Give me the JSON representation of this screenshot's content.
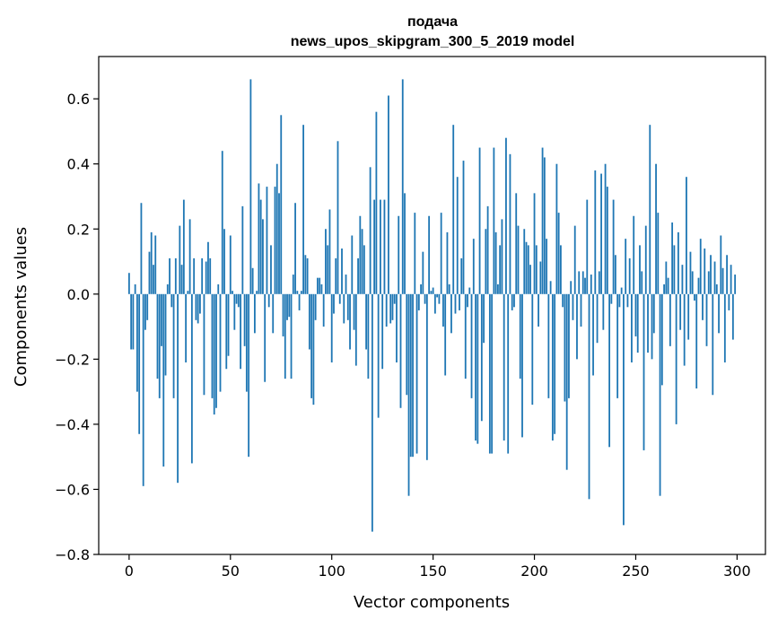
{
  "chart_data": {
    "type": "bar",
    "title": "подача",
    "subtitle": "news_upos_skipgram_300_5_2019 model",
    "xlabel": "Vector components",
    "ylabel": "Components values",
    "xlim": [
      -15,
      314
    ],
    "ylim": [
      -0.8,
      0.73
    ],
    "xticks": [
      0,
      50,
      100,
      150,
      200,
      250,
      300
    ],
    "yticks": [
      -0.8,
      -0.6,
      -0.4,
      -0.2,
      0.0,
      0.2,
      0.4,
      0.6
    ],
    "ytick_labels": [
      "−0.8",
      "−0.6",
      "−0.4",
      "−0.2",
      "0.0",
      "0.2",
      "0.4",
      "0.6"
    ],
    "grid": false,
    "bar_color": "#1f77b4",
    "values": [
      0.065,
      -0.17,
      -0.17,
      0.03,
      -0.3,
      -0.43,
      0.28,
      -0.59,
      -0.11,
      -0.08,
      0.13,
      0.19,
      0.09,
      0.18,
      -0.26,
      -0.32,
      -0.16,
      -0.53,
      -0.25,
      0.03,
      0.11,
      -0.04,
      -0.32,
      0.11,
      -0.58,
      0.21,
      0.09,
      0.29,
      -0.21,
      0.01,
      0.23,
      -0.52,
      0.11,
      -0.08,
      -0.09,
      -0.06,
      0.11,
      -0.31,
      0.1,
      0.16,
      0.11,
      -0.32,
      -0.37,
      -0.35,
      0.03,
      -0.3,
      0.44,
      0.2,
      -0.23,
      -0.19,
      0.18,
      0.01,
      -0.11,
      -0.03,
      -0.04,
      -0.23,
      0.27,
      -0.16,
      -0.3,
      -0.5,
      0.66,
      0.08,
      -0.12,
      0.01,
      0.34,
      0.29,
      0.23,
      -0.27,
      0.33,
      -0.04,
      0.15,
      -0.12,
      0.33,
      0.4,
      0.31,
      0.55,
      -0.13,
      -0.26,
      -0.08,
      -0.07,
      -0.26,
      0.06,
      0.28,
      0.01,
      -0.05,
      0.01,
      0.52,
      0.12,
      0.11,
      -0.17,
      -0.32,
      -0.34,
      -0.08,
      0.05,
      0.05,
      0.03,
      -0.1,
      0.2,
      0.15,
      0.26,
      -0.21,
      -0.06,
      0.11,
      0.47,
      -0.03,
      0.14,
      -0.09,
      0.06,
      -0.08,
      -0.17,
      0.18,
      -0.11,
      -0.22,
      0.11,
      0.24,
      0.2,
      0.15,
      -0.17,
      -0.26,
      0.39,
      -0.73,
      0.29,
      0.56,
      -0.38,
      0.29,
      -0.23,
      0.29,
      -0.1,
      0.61,
      -0.09,
      -0.08,
      -0.03,
      -0.21,
      0.24,
      -0.35,
      0.66,
      0.31,
      -0.31,
      -0.62,
      -0.5,
      -0.5,
      0.25,
      -0.49,
      -0.05,
      0.03,
      0.13,
      -0.03,
      -0.51,
      0.24,
      0.01,
      0.02,
      -0.06,
      -0.01,
      -0.03,
      0.25,
      -0.1,
      -0.25,
      0.19,
      0.03,
      -0.12,
      0.52,
      -0.06,
      0.36,
      -0.05,
      0.11,
      0.41,
      -0.26,
      -0.04,
      0.02,
      -0.32,
      0.17,
      -0.45,
      -0.46,
      0.45,
      -0.39,
      -0.15,
      0.2,
      0.27,
      -0.49,
      -0.49,
      0.45,
      0.19,
      0.03,
      0.15,
      0.23,
      -0.45,
      0.48,
      -0.49,
      0.43,
      -0.05,
      -0.04,
      0.31,
      0.21,
      -0.26,
      -0.44,
      0.2,
      0.16,
      0.15,
      0.09,
      -0.34,
      0.31,
      0.15,
      -0.1,
      0.1,
      0.45,
      0.42,
      0.17,
      -0.32,
      0.04,
      -0.45,
      -0.43,
      0.4,
      0.25,
      0.15,
      -0.04,
      -0.33,
      -0.54,
      -0.32,
      0.04,
      -0.08,
      0.21,
      -0.2,
      0.07,
      -0.1,
      0.07,
      0.05,
      0.29,
      -0.63,
      0.06,
      -0.25,
      0.38,
      -0.15,
      0.07,
      0.37,
      -0.11,
      0.4,
      0.33,
      -0.47,
      -0.03,
      0.29,
      0.12,
      -0.32,
      -0.04,
      0.02,
      -0.71,
      0.17,
      -0.04,
      0.11,
      -0.21,
      0.24,
      -0.13,
      -0.18,
      0.15,
      0.07,
      -0.48,
      0.21,
      -0.18,
      0.52,
      -0.2,
      -0.12,
      0.4,
      0.25,
      -0.62,
      -0.28,
      0.03,
      0.1,
      0.05,
      -0.16,
      0.22,
      0.15,
      -0.4,
      0.19,
      -0.11,
      0.09,
      -0.22,
      0.36,
      -0.14,
      0.13,
      0.07,
      -0.02,
      -0.29,
      0.05,
      0.17,
      -0.08,
      0.14,
      -0.16,
      0.07,
      0.12,
      -0.31,
      0.1,
      0.03,
      -0.12,
      0.18,
      0.08,
      -0.21,
      0.12,
      -0.05,
      0.09,
      -0.14,
      0.06
    ]
  }
}
